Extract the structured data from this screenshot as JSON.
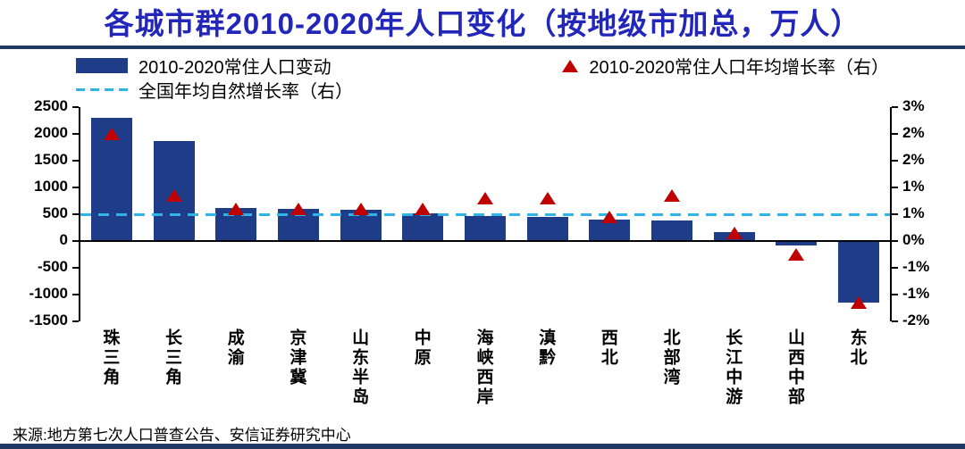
{
  "title": "各城市群2010-2020年人口变化（按地级市加总，万人）",
  "source": "来源:地方第七次人口普查公告、安信证券研究中心",
  "legend": {
    "bar": "2010-2020常住人口变动",
    "marker": "2010-2020常住人口年均增长率（右）",
    "dash": "全国年均自然增长率（右）"
  },
  "colors": {
    "bar": "#1f3c88",
    "marker": "#c00000",
    "dash_line": "#30b4e8",
    "title": "#2226b9",
    "rule": "#1f3864"
  },
  "chart_data": {
    "type": "bar",
    "title": "各城市群2010-2020年人口变化（按地级市加总，万人）",
    "legend_position": "top",
    "grid": false,
    "categories": [
      "珠三角",
      "长三角",
      "成渝",
      "京津冀",
      "山东半岛",
      "中原",
      "海峡西岸",
      "滇黔",
      "西北",
      "北部湾",
      "长江中游",
      "山西中部",
      "东北"
    ],
    "series": [
      {
        "name": "2010-2020常住人口变动",
        "type": "bar",
        "axis": "left",
        "unit": "万人",
        "values": [
          2300,
          1870,
          620,
          600,
          580,
          510,
          470,
          450,
          400,
          390,
          170,
          -90,
          -1150
        ]
      },
      {
        "name": "2010-2020常住人口年均增长率（右）",
        "type": "scatter",
        "marker": "triangle",
        "axis": "right",
        "unit": "%",
        "values": [
          2.0,
          0.85,
          0.6,
          0.6,
          0.6,
          0.6,
          0.8,
          0.8,
          0.45,
          0.85,
          0.15,
          -0.25,
          -1.15
        ]
      },
      {
        "name": "全国年均自然增长率（右）",
        "type": "line",
        "style": "dashed",
        "axis": "right",
        "unit": "%",
        "value": 0.5
      }
    ],
    "left_axis": {
      "min": -1500,
      "max": 2500,
      "ticks": [
        "2500",
        "2000",
        "1500",
        "1000",
        "500",
        "0",
        "-500",
        "-1000",
        "-1500"
      ]
    },
    "right_axis": {
      "ticks": [
        "3%",
        "2%",
        "2%",
        "1%",
        "1%",
        "0%",
        "-1%",
        "-1%",
        "-2%"
      ],
      "percent_per_left_unit": 0.001
    }
  }
}
